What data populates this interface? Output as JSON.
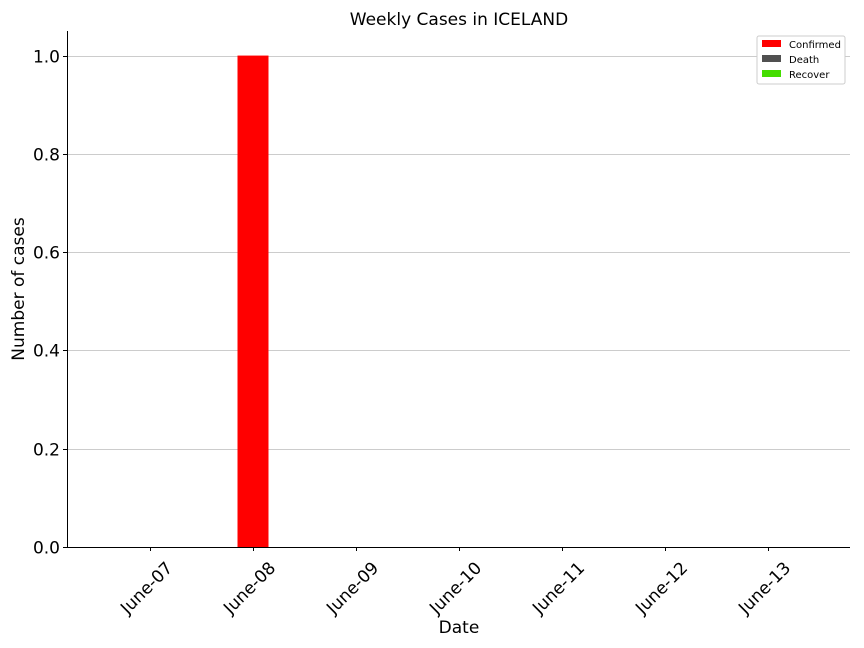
{
  "chart_data": {
    "type": "bar",
    "title": "Weekly Cases in ICELAND",
    "xlabel": "Date",
    "ylabel": "Number of cases",
    "categories": [
      "June-07",
      "June-08",
      "June-09",
      "June-10",
      "June-11",
      "June-12",
      "June-13"
    ],
    "series": [
      {
        "name": "Confirmed",
        "color": "#ff0000",
        "values": [
          0,
          1,
          0,
          0,
          0,
          0,
          0
        ]
      },
      {
        "name": "Death",
        "color": "#505050",
        "values": [
          0,
          0,
          0,
          0,
          0,
          0,
          0
        ]
      },
      {
        "name": "Recover",
        "color": "#44dd00",
        "values": [
          0,
          0,
          0,
          0,
          0,
          0,
          0
        ]
      }
    ],
    "ylim": [
      0,
      1.05
    ],
    "yticks": [
      "0.0",
      "0.2",
      "0.4",
      "0.6",
      "0.8",
      "1.0"
    ],
    "ytick_values": [
      0,
      0.2,
      0.4,
      0.6,
      0.8,
      1.0
    ],
    "grid": "horizontal",
    "legend_position": "top-right"
  }
}
